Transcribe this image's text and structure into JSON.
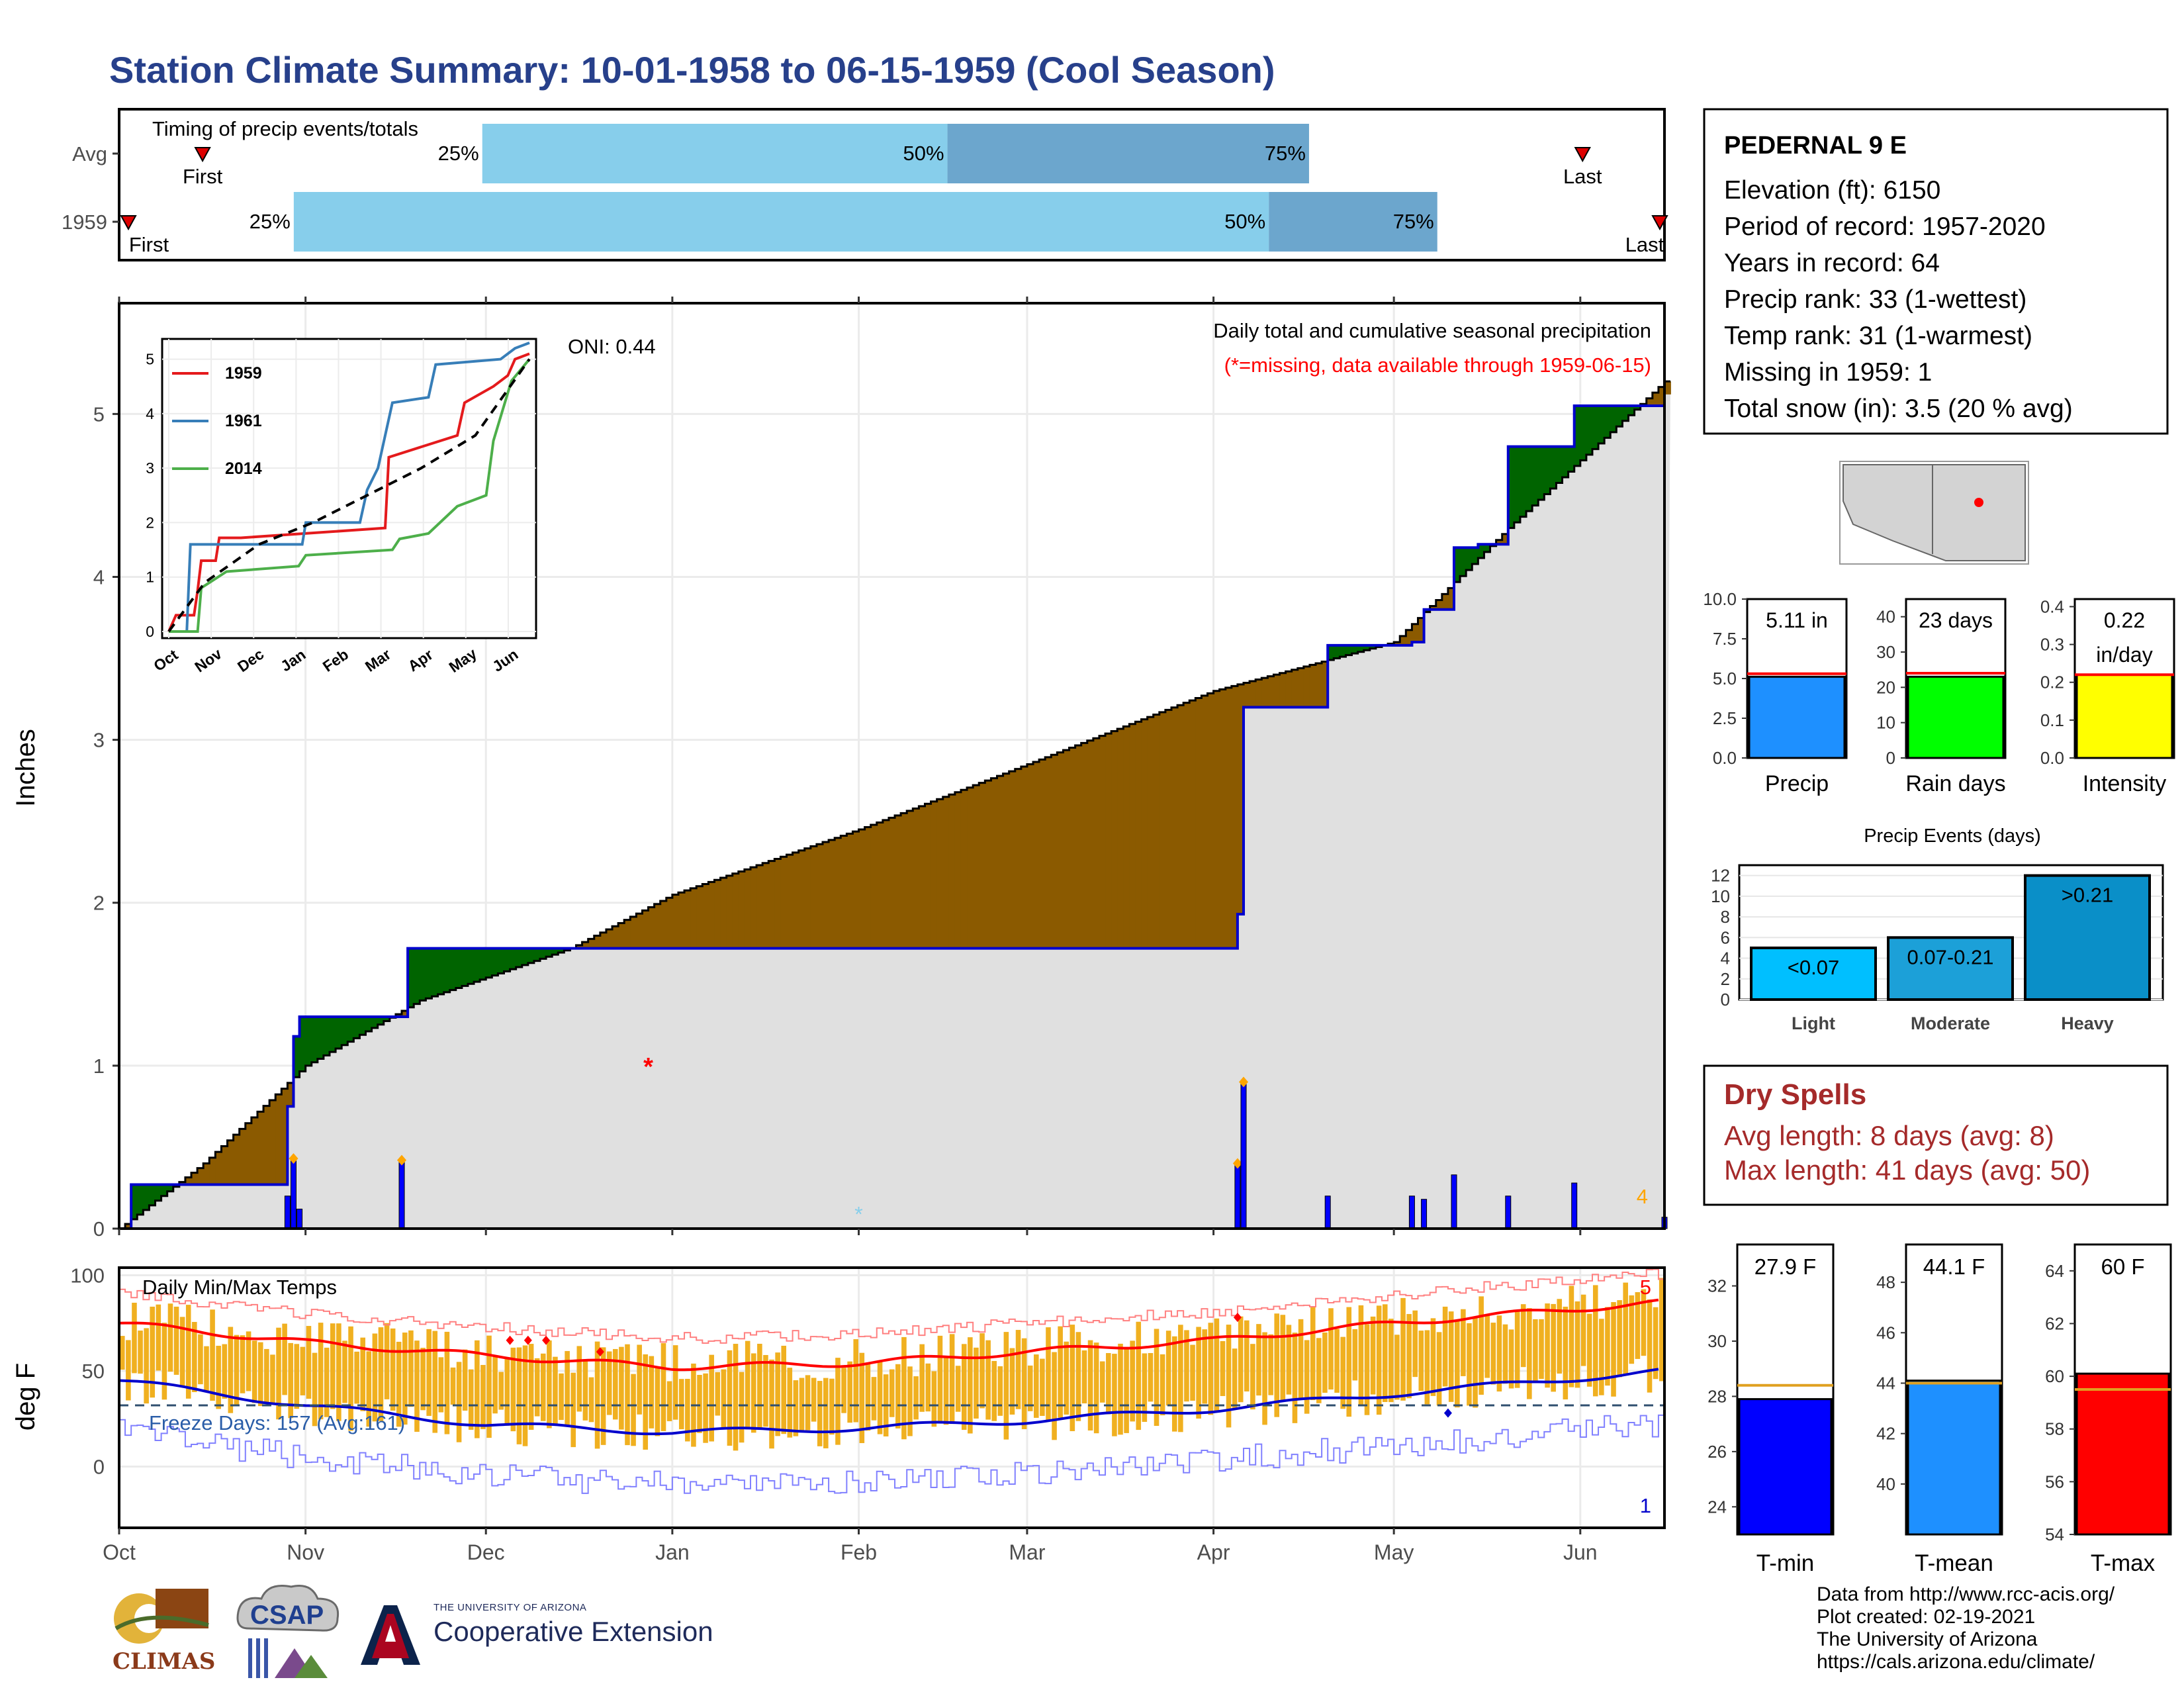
{
  "title": "Station Climate Summary: 10-01-1958 to 06-15-1959 (Cool Season)",
  "timing_panel": {
    "label": "Timing of precip events/totals",
    "rows": [
      {
        "name": "Avg",
        "first": 0.054,
        "last": 0.947,
        "q25": 0.235,
        "q50": 0.536,
        "q75": 0.77,
        "first_label": "First",
        "last_label": "Last",
        "q25_label": "25%",
        "q50_label": "50%",
        "q75_label": "75%"
      },
      {
        "name": "1959",
        "first": 0.006,
        "last": 0.997,
        "q25": 0.113,
        "q50": 0.744,
        "q75": 0.853,
        "first_label": "First",
        "last_label": "Last",
        "q25_label": "25%",
        "q50_label": "50%",
        "q75_label": "75%"
      }
    ]
  },
  "station": {
    "name": "PEDERNAL 9 E",
    "lines": [
      "Elevation (ft): 6150",
      "Period of record: 1957-2020",
      "Years in record: 64",
      "Precip rank: 33 (1-wettest)",
      "Temp rank: 31 (1-warmest)",
      "Missing in 1959: 1",
      "Total snow (in): 3.5 (20 % avg)"
    ]
  },
  "precip_panel": {
    "ylabel": "Inches",
    "oni": "ONI: 0.44",
    "note1": "Daily total and cumulative seasonal precipitation",
    "note2": "(*=missing, data available through 1959-06-15)",
    "corner_count": "4",
    "missing_marker": "*",
    "yticks": [
      "0",
      "1",
      "2",
      "3",
      "4",
      "5"
    ],
    "inset": {
      "legend": [
        "1959",
        "1961",
        "2014"
      ],
      "months": [
        "Oct",
        "Nov",
        "Dec",
        "Jan",
        "Feb",
        "Mar",
        "Apr",
        "May",
        "Jun"
      ],
      "yticks": [
        "0",
        "1",
        "2",
        "3",
        "4",
        "5"
      ]
    }
  },
  "temp_panel": {
    "ylabel": "deg F",
    "label": "Daily Min/Max Temps",
    "freeze": "Freeze Days: 157 (Avg:161)",
    "count_top": "5",
    "count_bottom": "1",
    "yticks": [
      "0",
      "50",
      "100"
    ]
  },
  "months": [
    "Oct",
    "Nov",
    "Dec",
    "Jan",
    "Feb",
    "Mar",
    "Apr",
    "May",
    "Jun"
  ],
  "mini_bars": [
    {
      "label": "Precip",
      "value_label": "5.11 in",
      "value": 5.11,
      "avg": 5.3,
      "ymax": 10.0,
      "yticks": [
        "10.0",
        "7.5",
        "5.0",
        "2.5",
        "0.0"
      ],
      "color": "#1e90ff"
    },
    {
      "label": "Rain days",
      "value_label": "23 days",
      "value": 23,
      "avg": 24,
      "ymax": 45,
      "yticks": [
        "40",
        "30",
        "20",
        "10",
        "0"
      ],
      "color": "#00ff00"
    },
    {
      "label": "Intensity",
      "value_label": "0.22",
      "value_label2": "in/day",
      "value": 0.22,
      "avg": 0.22,
      "ymax": 0.42,
      "yticks": [
        "0.4",
        "0.3",
        "0.2",
        "0.1",
        "0.0"
      ],
      "color": "#ffff00"
    }
  ],
  "precip_events": {
    "title": "Precip Events (days)",
    "yticks": [
      "12",
      "10",
      "8",
      "6",
      "4",
      "2",
      "0"
    ],
    "bars": [
      {
        "label": "Light",
        "bar_label": "<0.07",
        "value": 5,
        "color": "#00bfff"
      },
      {
        "label": "Moderate",
        "bar_label": "0.07-0.21",
        "value": 6,
        "color": "#1ca0d8"
      },
      {
        "label": "Heavy",
        "bar_label": ">0.21",
        "value": 12,
        "color": "#0a8fc8"
      }
    ]
  },
  "dry_spells": {
    "title": "Dry Spells",
    "lines": [
      "Avg length: 8 days (avg: 8)",
      "Max length: 41 days (avg: 50)"
    ]
  },
  "temp_bars": [
    {
      "label": "T-min",
      "value_label": "27.9 F",
      "value": 27.9,
      "avg": 28.4,
      "ymin": 23,
      "ymax": 33.5,
      "yticks": [
        "32",
        "30",
        "28",
        "26",
        "24"
      ],
      "color": "#0000ff"
    },
    {
      "label": "T-mean",
      "value_label": "44.1 F",
      "value": 44.1,
      "avg": 44.0,
      "ymin": 38,
      "ymax": 49.5,
      "yticks": [
        "48",
        "46",
        "44",
        "42",
        "40"
      ],
      "color": "#1e90ff"
    },
    {
      "label": "T-max",
      "value_label": "60 F",
      "value": 60.1,
      "avg": 59.5,
      "ymin": 54,
      "ymax": 65,
      "yticks": [
        "64",
        "62",
        "60",
        "58",
        "56",
        "54"
      ],
      "color": "#ff0000"
    }
  ],
  "footer": {
    "lines": [
      "Data from http://www.rcc-acis.org/",
      "Plot created: 02-19-2021",
      "The University of Arizona",
      "https://cals.arizona.edu/climate/"
    ],
    "coop_small": "THE UNIVERSITY OF ARIZONA",
    "coop_big": "Cooperative Extension",
    "climas": "CLIMAS",
    "csap": "CSAP"
  },
  "colors": {
    "title": "#27408b",
    "cum_above": "#006400",
    "cum_below": "#8b5a00",
    "cum_normal": "#e0e0e0",
    "daily_bar": "#0000ff",
    "tmax_bar": "#f0b020",
    "q_light": "#87ceeb",
    "q_dark": "#6ca6cd"
  },
  "chart_data": [
    {
      "type": "line",
      "title": "Daily total and cumulative seasonal precipitation",
      "ylabel": "Inches",
      "ylim": [
        0,
        5.4
      ],
      "x_range": [
        "1958-10-01",
        "1959-06-15"
      ],
      "series": [
        {
          "kind": "cumulative_1959",
          "x": [
            "1958-10-01",
            "1958-10-03",
            "1958-10-06",
            "1958-10-29",
            "1958-10-30",
            "1958-10-31",
            "1958-11-17",
            "1958-11-18",
            "1958-12-18",
            "1959-04-05",
            "1959-04-06",
            "1959-04-20",
            "1959-05-04",
            "1959-05-06",
            "1959-05-11",
            "1959-05-15",
            "1959-05-20",
            "1959-05-31",
            "1959-06-14",
            "1959-06-15"
          ],
          "y": [
            0.0,
            0.27,
            0.27,
            0.75,
            1.18,
            1.3,
            1.3,
            1.72,
            1.72,
            1.93,
            3.2,
            3.58,
            3.6,
            3.8,
            4.18,
            4.2,
            4.8,
            5.05,
            5.05,
            5.12
          ]
        },
        {
          "kind": "cumulative_average",
          "x": [
            "1958-10-01",
            "1958-10-15",
            "1958-11-01",
            "1958-11-20",
            "1958-12-15",
            "1959-01-01",
            "1959-02-01",
            "1959-03-01",
            "1959-04-01",
            "1959-05-01",
            "1959-05-20",
            "1959-06-15"
          ],
          "y": [
            0.0,
            0.4,
            1.0,
            1.4,
            1.72,
            2.05,
            2.45,
            2.85,
            3.3,
            3.6,
            4.3,
            5.2
          ]
        },
        {
          "kind": "daily_precip",
          "x": [
            "1958-10-29",
            "1958-10-30",
            "1958-10-31",
            "1958-11-17",
            "1959-04-05",
            "1959-04-06",
            "1959-04-20",
            "1959-05-04",
            "1959-05-06",
            "1959-05-11",
            "1959-05-20",
            "1959-05-31",
            "1959-06-15"
          ],
          "y": [
            0.2,
            0.43,
            0.12,
            0.42,
            0.4,
            0.9,
            0.2,
            0.2,
            0.18,
            0.33,
            0.2,
            0.28,
            0.07
          ]
        }
      ]
    },
    {
      "type": "line",
      "title": "Daily Min/Max Temps",
      "ylabel": "deg F",
      "ylim": [
        -30,
        100
      ],
      "series": [
        {
          "name": "avg_tmax",
          "x": [
            "1958-10-01",
            "1958-11-01",
            "1958-12-01",
            "1959-01-01",
            "1959-02-01",
            "1959-03-01",
            "1959-04-01",
            "1959-05-01",
            "1959-06-15"
          ],
          "y": [
            75,
            65,
            58,
            52,
            54,
            60,
            66,
            75,
            86
          ]
        },
        {
          "name": "avg_tmin",
          "x": [
            "1958-10-01",
            "1958-11-01",
            "1958-12-01",
            "1959-01-01",
            "1959-02-01",
            "1959-03-01",
            "1959-04-01",
            "1959-05-01",
            "1959-06-15"
          ],
          "y": [
            45,
            32,
            22,
            18,
            20,
            24,
            30,
            38,
            50
          ]
        }
      ],
      "freeze_line": 32
    }
  ]
}
